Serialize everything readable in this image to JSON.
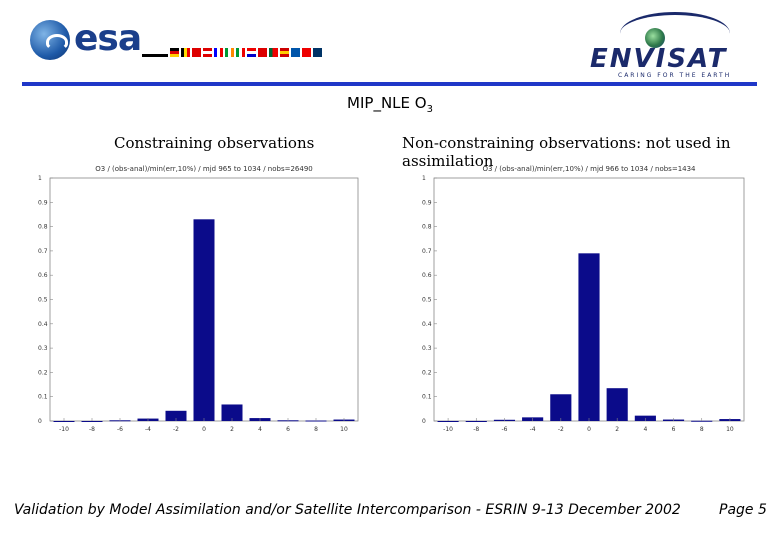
{
  "header": {
    "esa_word": "esa",
    "envisat_word": "ENVISAT",
    "envisat_tagline": "CARING FOR THE EARTH",
    "rule_color": "#1f37c8"
  },
  "title": "MIP_NLE O",
  "title_sub": "3",
  "subtitles": {
    "left": "Constraining observations",
    "right": "Non-constraining observations: not used in assimilation"
  },
  "footer": {
    "text": "Validation by Model Assimilation and/or Satellite Intercomparison - ESRIN 9-13 December 2002",
    "page": "Page 5"
  },
  "chart_data": [
    {
      "type": "bar",
      "title": "O3 / (obs-anal)/min(err,10%) / mjd 965 to 1034 / nobs=26490",
      "x": [
        -10,
        -8,
        -6,
        -4,
        -2,
        0,
        2,
        4,
        6,
        8,
        10
      ],
      "values": [
        0,
        0,
        0.003,
        0.01,
        0.042,
        0.83,
        0.068,
        0.012,
        0.003,
        0.002,
        0.006
      ],
      "xlim": [
        -11,
        11
      ],
      "ylim": [
        0,
        1
      ],
      "xticks": [
        "-10",
        "-8",
        "-6",
        "-4",
        "-2",
        "0",
        "2",
        "4",
        "6",
        "8",
        "10"
      ],
      "yticks": [
        "0",
        "0.1",
        "0.2",
        "0.3",
        "0.4",
        "0.5",
        "0.6",
        "0.7",
        "0.8",
        "0.9",
        "1"
      ],
      "bar_color": "#0b0b8a",
      "grid": false
    },
    {
      "type": "bar",
      "title": "O3 / (obs-anal)/min(err,10%) / mjd 966 to 1034 / nobs=1434",
      "x": [
        -10,
        -8,
        -6,
        -4,
        -2,
        0,
        2,
        4,
        6,
        8,
        10
      ],
      "values": [
        0,
        0,
        0.005,
        0.015,
        0.11,
        0.69,
        0.135,
        0.022,
        0.006,
        0.001,
        0.008
      ],
      "xlim": [
        -11,
        11
      ],
      "ylim": [
        0,
        1
      ],
      "xticks": [
        "-10",
        "-8",
        "-6",
        "-4",
        "-2",
        "0",
        "2",
        "4",
        "6",
        "8",
        "10"
      ],
      "yticks": [
        "0",
        "0.1",
        "0.2",
        "0.3",
        "0.4",
        "0.5",
        "0.6",
        "0.7",
        "0.8",
        "0.9",
        "1"
      ],
      "bar_color": "#0b0b8a",
      "grid": false
    }
  ]
}
